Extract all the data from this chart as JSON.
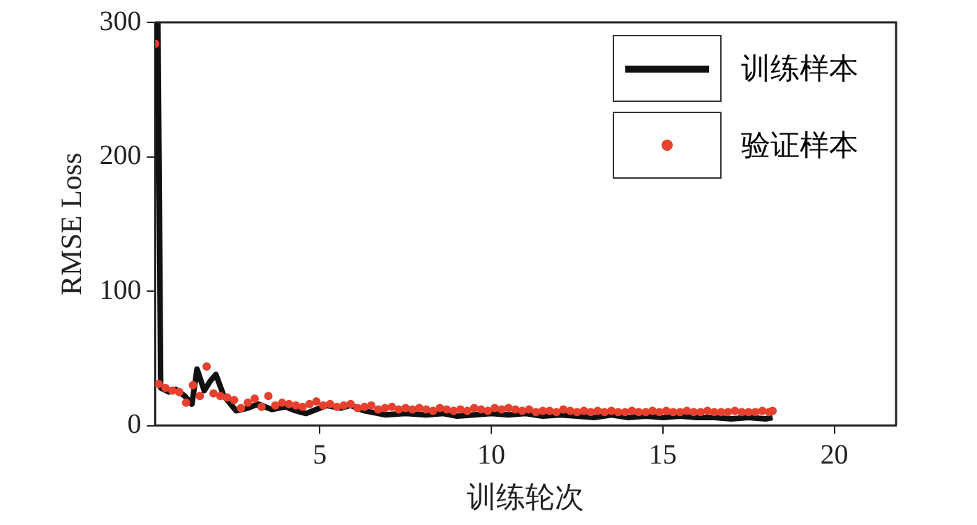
{
  "chart_data": {
    "type": "line",
    "xlabel": "训练轮次",
    "ylabel": "RMSE Loss",
    "xlim": [
      0.2,
      21.8
    ],
    "xticks": [
      5,
      10,
      15,
      20
    ],
    "ylim": [
      0,
      300
    ],
    "yticks": [
      0,
      100,
      200,
      300
    ],
    "grid": false,
    "legend": "top right",
    "series": [
      {
        "name": "训练样本",
        "type": "line",
        "color": "#111111",
        "marker": "none",
        "x": [
          0.2,
          0.28,
          0.36,
          0.6,
          0.8,
          1.06,
          1.27,
          1.42,
          1.63,
          1.8,
          1.97,
          2.2,
          2.56,
          2.9,
          3.2,
          3.6,
          4.0,
          4.3,
          4.6,
          5.2,
          5.6,
          5.9,
          6.3,
          6.9,
          7.5,
          8.1,
          8.6,
          9.0,
          9.5,
          10.0,
          10.5,
          11.0,
          11.5,
          12.0,
          12.5,
          13.0,
          13.5,
          14.0,
          14.5,
          15.0,
          15.5,
          16.0,
          16.5,
          17.0,
          17.5,
          18.0,
          18.2
        ],
        "values": [
          230,
          300,
          28,
          25,
          27,
          22,
          16,
          42,
          26,
          33,
          38,
          22,
          11,
          13,
          16,
          12,
          14,
          11,
          9,
          15,
          13,
          15,
          11,
          8,
          9,
          8,
          9,
          7,
          8,
          9,
          8,
          9,
          7,
          8,
          7,
          6,
          8,
          6,
          7,
          6,
          7,
          6,
          6,
          5,
          6,
          5,
          6
        ]
      },
      {
        "name": "验证样本",
        "type": "scatter",
        "color": "#e8402f",
        "marker": "circle",
        "x": [
          0.2,
          0.3,
          0.5,
          0.7,
          0.9,
          1.1,
          1.3,
          1.5,
          1.7,
          1.9,
          2.1,
          2.3,
          2.5,
          2.7,
          2.9,
          3.1,
          3.3,
          3.5,
          3.7,
          3.9,
          4.1,
          4.3,
          4.5,
          4.7,
          4.9,
          5.1,
          5.3,
          5.5,
          5.7,
          5.9,
          6.1,
          6.3,
          6.5,
          6.7,
          6.9,
          7.1,
          7.3,
          7.5,
          7.7,
          7.9,
          8.1,
          8.3,
          8.5,
          8.7,
          8.9,
          9.1,
          9.3,
          9.5,
          9.7,
          9.9,
          10.1,
          10.3,
          10.5,
          10.7,
          10.9,
          11.1,
          11.3,
          11.5,
          11.7,
          11.9,
          12.1,
          12.3,
          12.5,
          12.7,
          12.9,
          13.1,
          13.3,
          13.5,
          13.7,
          13.9,
          14.1,
          14.3,
          14.5,
          14.7,
          14.9,
          15.1,
          15.3,
          15.5,
          15.7,
          15.9,
          16.1,
          16.3,
          16.5,
          16.7,
          16.9,
          17.1,
          17.3,
          17.5,
          17.7,
          17.9,
          18.1,
          18.2
        ],
        "values": [
          284,
          31,
          28,
          26,
          25,
          17,
          30,
          22,
          44,
          24,
          22,
          21,
          19,
          13,
          17,
          20,
          14,
          22,
          15,
          17,
          16,
          15,
          14,
          16,
          18,
          15,
          16,
          14,
          15,
          16,
          13,
          14,
          15,
          12,
          13,
          14,
          12,
          13,
          12,
          13,
          12,
          11,
          13,
          12,
          11,
          12,
          11,
          13,
          12,
          11,
          13,
          12,
          13,
          12,
          11,
          12,
          10,
          11,
          11,
          10,
          12,
          11,
          10,
          11,
          10,
          11,
          10,
          11,
          10,
          10,
          11,
          10,
          10,
          11,
          10,
          11,
          10,
          10,
          11,
          10,
          10,
          11,
          10,
          10,
          10,
          11,
          10,
          10,
          10,
          11,
          10,
          11
        ]
      }
    ]
  }
}
